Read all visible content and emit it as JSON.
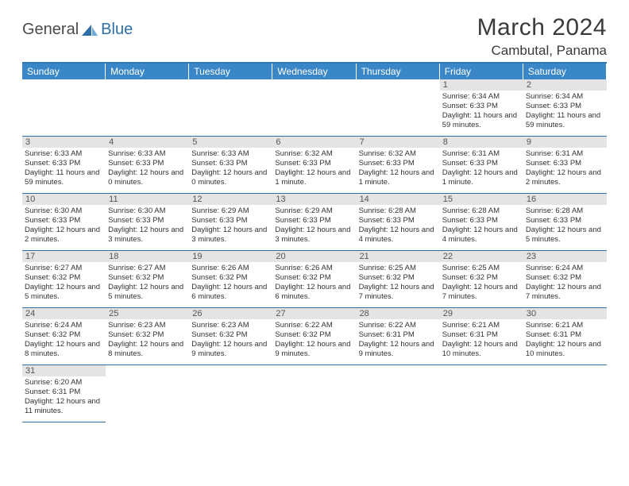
{
  "logo": {
    "text1": "General",
    "text2": "Blue"
  },
  "title": "March 2024",
  "location": "Cambutal, Panama",
  "colors": {
    "header_bg": "#3a87c8",
    "header_border_top": "#2f79b8",
    "row_divider": "#2f6fa8",
    "daynum_bg": "#e4e4e4",
    "logo_blue": "#2f6fa8",
    "text_dark": "#3a3a3a"
  },
  "weekdays": [
    "Sunday",
    "Monday",
    "Tuesday",
    "Wednesday",
    "Thursday",
    "Friday",
    "Saturday"
  ],
  "weeks": [
    [
      {
        "day": "",
        "lines": []
      },
      {
        "day": "",
        "lines": []
      },
      {
        "day": "",
        "lines": []
      },
      {
        "day": "",
        "lines": []
      },
      {
        "day": "",
        "lines": []
      },
      {
        "day": "1",
        "lines": [
          "Sunrise: 6:34 AM",
          "Sunset: 6:33 PM",
          "Daylight: 11 hours and 59 minutes."
        ]
      },
      {
        "day": "2",
        "lines": [
          "Sunrise: 6:34 AM",
          "Sunset: 6:33 PM",
          "Daylight: 11 hours and 59 minutes."
        ]
      }
    ],
    [
      {
        "day": "3",
        "lines": [
          "Sunrise: 6:33 AM",
          "Sunset: 6:33 PM",
          "Daylight: 11 hours and 59 minutes."
        ]
      },
      {
        "day": "4",
        "lines": [
          "Sunrise: 6:33 AM",
          "Sunset: 6:33 PM",
          "Daylight: 12 hours and 0 minutes."
        ]
      },
      {
        "day": "5",
        "lines": [
          "Sunrise: 6:33 AM",
          "Sunset: 6:33 PM",
          "Daylight: 12 hours and 0 minutes."
        ]
      },
      {
        "day": "6",
        "lines": [
          "Sunrise: 6:32 AM",
          "Sunset: 6:33 PM",
          "Daylight: 12 hours and 1 minute."
        ]
      },
      {
        "day": "7",
        "lines": [
          "Sunrise: 6:32 AM",
          "Sunset: 6:33 PM",
          "Daylight: 12 hours and 1 minute."
        ]
      },
      {
        "day": "8",
        "lines": [
          "Sunrise: 6:31 AM",
          "Sunset: 6:33 PM",
          "Daylight: 12 hours and 1 minute."
        ]
      },
      {
        "day": "9",
        "lines": [
          "Sunrise: 6:31 AM",
          "Sunset: 6:33 PM",
          "Daylight: 12 hours and 2 minutes."
        ]
      }
    ],
    [
      {
        "day": "10",
        "lines": [
          "Sunrise: 6:30 AM",
          "Sunset: 6:33 PM",
          "Daylight: 12 hours and 2 minutes."
        ]
      },
      {
        "day": "11",
        "lines": [
          "Sunrise: 6:30 AM",
          "Sunset: 6:33 PM",
          "Daylight: 12 hours and 3 minutes."
        ]
      },
      {
        "day": "12",
        "lines": [
          "Sunrise: 6:29 AM",
          "Sunset: 6:33 PM",
          "Daylight: 12 hours and 3 minutes."
        ]
      },
      {
        "day": "13",
        "lines": [
          "Sunrise: 6:29 AM",
          "Sunset: 6:33 PM",
          "Daylight: 12 hours and 3 minutes."
        ]
      },
      {
        "day": "14",
        "lines": [
          "Sunrise: 6:28 AM",
          "Sunset: 6:33 PM",
          "Daylight: 12 hours and 4 minutes."
        ]
      },
      {
        "day": "15",
        "lines": [
          "Sunrise: 6:28 AM",
          "Sunset: 6:33 PM",
          "Daylight: 12 hours and 4 minutes."
        ]
      },
      {
        "day": "16",
        "lines": [
          "Sunrise: 6:28 AM",
          "Sunset: 6:33 PM",
          "Daylight: 12 hours and 5 minutes."
        ]
      }
    ],
    [
      {
        "day": "17",
        "lines": [
          "Sunrise: 6:27 AM",
          "Sunset: 6:32 PM",
          "Daylight: 12 hours and 5 minutes."
        ]
      },
      {
        "day": "18",
        "lines": [
          "Sunrise: 6:27 AM",
          "Sunset: 6:32 PM",
          "Daylight: 12 hours and 5 minutes."
        ]
      },
      {
        "day": "19",
        "lines": [
          "Sunrise: 6:26 AM",
          "Sunset: 6:32 PM",
          "Daylight: 12 hours and 6 minutes."
        ]
      },
      {
        "day": "20",
        "lines": [
          "Sunrise: 6:26 AM",
          "Sunset: 6:32 PM",
          "Daylight: 12 hours and 6 minutes."
        ]
      },
      {
        "day": "21",
        "lines": [
          "Sunrise: 6:25 AM",
          "Sunset: 6:32 PM",
          "Daylight: 12 hours and 7 minutes."
        ]
      },
      {
        "day": "22",
        "lines": [
          "Sunrise: 6:25 AM",
          "Sunset: 6:32 PM",
          "Daylight: 12 hours and 7 minutes."
        ]
      },
      {
        "day": "23",
        "lines": [
          "Sunrise: 6:24 AM",
          "Sunset: 6:32 PM",
          "Daylight: 12 hours and 7 minutes."
        ]
      }
    ],
    [
      {
        "day": "24",
        "lines": [
          "Sunrise: 6:24 AM",
          "Sunset: 6:32 PM",
          "Daylight: 12 hours and 8 minutes."
        ]
      },
      {
        "day": "25",
        "lines": [
          "Sunrise: 6:23 AM",
          "Sunset: 6:32 PM",
          "Daylight: 12 hours and 8 minutes."
        ]
      },
      {
        "day": "26",
        "lines": [
          "Sunrise: 6:23 AM",
          "Sunset: 6:32 PM",
          "Daylight: 12 hours and 9 minutes."
        ]
      },
      {
        "day": "27",
        "lines": [
          "Sunrise: 6:22 AM",
          "Sunset: 6:32 PM",
          "Daylight: 12 hours and 9 minutes."
        ]
      },
      {
        "day": "28",
        "lines": [
          "Sunrise: 6:22 AM",
          "Sunset: 6:31 PM",
          "Daylight: 12 hours and 9 minutes."
        ]
      },
      {
        "day": "29",
        "lines": [
          "Sunrise: 6:21 AM",
          "Sunset: 6:31 PM",
          "Daylight: 12 hours and 10 minutes."
        ]
      },
      {
        "day": "30",
        "lines": [
          "Sunrise: 6:21 AM",
          "Sunset: 6:31 PM",
          "Daylight: 12 hours and 10 minutes."
        ]
      }
    ],
    [
      {
        "day": "31",
        "lines": [
          "Sunrise: 6:20 AM",
          "Sunset: 6:31 PM",
          "Daylight: 12 hours and 11 minutes."
        ]
      },
      {
        "day": "",
        "lines": []
      },
      {
        "day": "",
        "lines": []
      },
      {
        "day": "",
        "lines": []
      },
      {
        "day": "",
        "lines": []
      },
      {
        "day": "",
        "lines": []
      },
      {
        "day": "",
        "lines": []
      }
    ]
  ]
}
